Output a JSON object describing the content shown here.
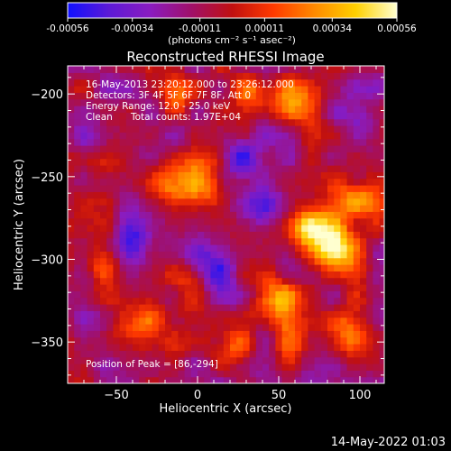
{
  "colorbar": {
    "tick_labels": [
      "-0.00056",
      "-0.00034",
      "-0.00011",
      "0.00011",
      "0.00034",
      "0.00056"
    ],
    "tick_values": [
      -0.00056,
      -0.00034,
      -0.00011,
      0.00011,
      0.00034,
      0.00056
    ],
    "range": [
      -0.00056,
      0.00056
    ],
    "unit_label": "(photons cm⁻² s⁻¹ asec⁻²)",
    "colors": [
      "#1010ff",
      "#5c1ad6",
      "#8a1cc0",
      "#a0106a",
      "#c01010",
      "#ff3a00",
      "#ff8a00",
      "#ffd000",
      "#ffffd0"
    ]
  },
  "chart_data": {
    "type": "heatmap",
    "title": "Reconstructed RHESSI Image",
    "xlabel": "Heliocentric X (arcsec)",
    "ylabel": "Heliocentric Y (arcsec)",
    "xlim": [
      -80,
      115
    ],
    "ylim": [
      -375,
      -183
    ],
    "x_ticks": [
      -50,
      0,
      50,
      100
    ],
    "y_ticks": [
      -200,
      -250,
      -300,
      -350
    ],
    "annotations": [
      "16-May-2013 23:20:12.000 to 23:26:12.000",
      "Detectors: 3F 4F 5F 6F 7F 8F, Att 0",
      "Energy Range: 12.0 - 25.0 keV",
      "Clean",
      "Total counts: 1.97E+04",
      "Position of Peak = [86,-294]"
    ],
    "peak": [
      86,
      -294
    ],
    "sources": [
      {
        "x": 0,
        "y": -253,
        "value": 0.00052,
        "sigma": 11
      },
      {
        "x": -22,
        "y": -255,
        "value": 0.00032,
        "sigma": 9
      },
      {
        "x": 86,
        "y": -294,
        "value": 0.00056,
        "sigma": 12
      },
      {
        "x": 68,
        "y": -282,
        "value": 0.00042,
        "sigma": 12
      },
      {
        "x": 98,
        "y": -262,
        "value": 0.00036,
        "sigma": 10
      },
      {
        "x": 47,
        "y": -324,
        "value": 0.00048,
        "sigma": 10
      },
      {
        "x": 92,
        "y": -345,
        "value": 0.0004,
        "sigma": 11
      },
      {
        "x": 58,
        "y": -350,
        "value": 0.0003,
        "sigma": 9
      },
      {
        "x": 62,
        "y": -205,
        "value": 0.00035,
        "sigma": 11
      },
      {
        "x": 36,
        "y": -198,
        "value": 0.0003,
        "sigma": 9
      },
      {
        "x": -12,
        "y": -202,
        "value": 0.00025,
        "sigma": 9
      },
      {
        "x": -60,
        "y": -248,
        "value": 0.00018,
        "sigma": 10
      },
      {
        "x": -40,
        "y": -340,
        "value": 0.00035,
        "sigma": 12
      },
      {
        "x": -5,
        "y": -320,
        "value": 0.00028,
        "sigma": 10
      },
      {
        "x": 20,
        "y": -355,
        "value": 0.00025,
        "sigma": 9
      },
      {
        "x": -60,
        "y": -300,
        "value": 0.0002,
        "sigma": 8
      },
      {
        "x": 25,
        "y": -240,
        "value": -0.0003,
        "sigma": 10
      },
      {
        "x": -40,
        "y": -290,
        "value": -0.00028,
        "sigma": 9
      },
      {
        "x": 10,
        "y": -305,
        "value": -0.00035,
        "sigma": 11
      },
      {
        "x": 40,
        "y": -270,
        "value": -0.0003,
        "sigma": 10
      },
      {
        "x": -65,
        "y": -230,
        "value": -0.0002,
        "sigma": 10
      },
      {
        "x": 100,
        "y": -220,
        "value": -0.00022,
        "sigma": 10
      }
    ],
    "noise_amplitude": 0.00018
  },
  "footer": {
    "date": "14-May-2022 01:03"
  }
}
